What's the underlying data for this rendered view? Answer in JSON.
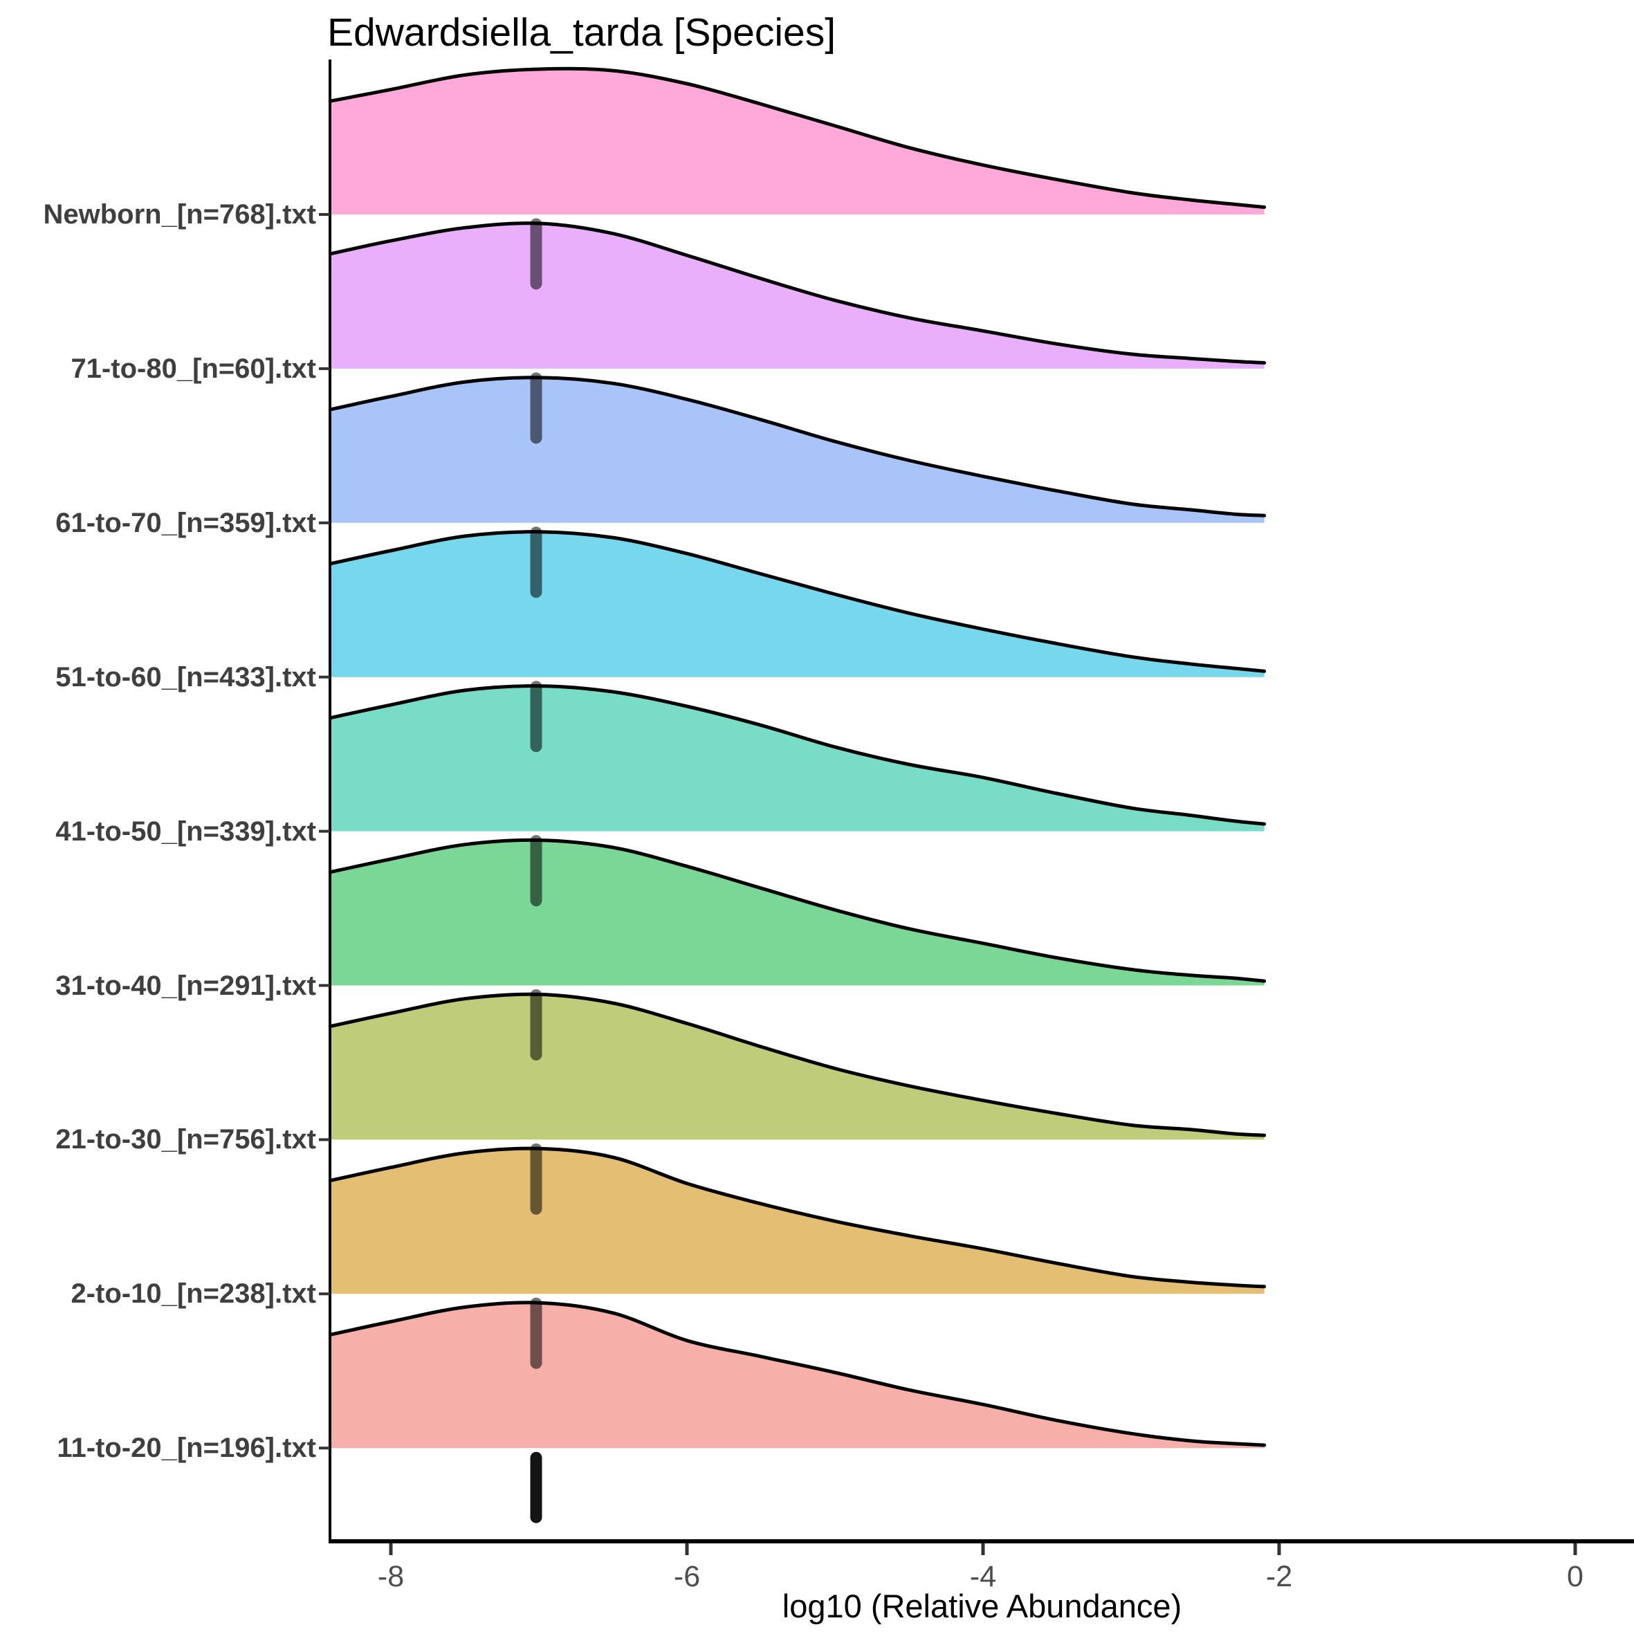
{
  "title": "Edwardsiella_tarda [Species]",
  "chart_data": {
    "type": "area",
    "subtype": "ridgeline-density",
    "title": "Edwardsiella_tarda [Species]",
    "xlabel": "log10 (Relative Abundance)",
    "ylabel": "",
    "legend": "none",
    "grid": false,
    "xlim": [
      -8.41,
      0.38
    ],
    "x_tick_values": [
      -8,
      -6,
      -4,
      -2,
      0
    ],
    "x_tick_labels": [
      "-8",
      "-6",
      "-4",
      "-2",
      "0"
    ],
    "density_truncated_at_x": -2.1,
    "rug_segment_x": -7.0,
    "density_x": [
      -8.41,
      -8.0,
      -7.5,
      -7.0,
      -6.5,
      -6.0,
      -5.5,
      -5.0,
      -4.5,
      -4.0,
      -3.5,
      -3.0,
      -2.6,
      -2.3,
      -2.1
    ],
    "series": [
      {
        "label": "Newborn_[n=768].txt",
        "n": 768,
        "fill": "#FFA9DA",
        "median_x": -7.0,
        "density": [
          0.78,
          0.86,
          0.96,
          1.0,
          0.99,
          0.9,
          0.76,
          0.61,
          0.46,
          0.34,
          0.24,
          0.15,
          0.1,
          0.07,
          0.05
        ]
      },
      {
        "label": "71-to-80_[n=60].txt",
        "n": 60,
        "fill": "#E9AFFB",
        "median_x": -7.0,
        "density": [
          0.79,
          0.88,
          0.97,
          1.0,
          0.93,
          0.78,
          0.62,
          0.47,
          0.35,
          0.26,
          0.17,
          0.1,
          0.07,
          0.05,
          0.04
        ]
      },
      {
        "label": "61-to-70_[n=359].txt",
        "n": 359,
        "fill": "#A8C4F8",
        "median_x": -7.0,
        "density": [
          0.78,
          0.87,
          0.97,
          1.0,
          0.96,
          0.85,
          0.71,
          0.56,
          0.43,
          0.32,
          0.22,
          0.13,
          0.09,
          0.06,
          0.05
        ]
      },
      {
        "label": "51-to-60_[n=433].txt",
        "n": 433,
        "fill": "#77D7EC",
        "median_x": -7.0,
        "density": [
          0.78,
          0.87,
          0.97,
          1.0,
          0.96,
          0.85,
          0.71,
          0.57,
          0.44,
          0.33,
          0.23,
          0.14,
          0.09,
          0.06,
          0.04
        ]
      },
      {
        "label": "41-to-50_[n=339].txt",
        "n": 339,
        "fill": "#79DCC6",
        "median_x": -7.0,
        "density": [
          0.78,
          0.87,
          0.97,
          1.0,
          0.96,
          0.86,
          0.73,
          0.58,
          0.46,
          0.37,
          0.26,
          0.16,
          0.11,
          0.07,
          0.05
        ]
      },
      {
        "label": "31-to-40_[n=291].txt",
        "n": 291,
        "fill": "#7BD795",
        "median_x": -7.0,
        "density": [
          0.78,
          0.87,
          0.97,
          1.0,
          0.95,
          0.82,
          0.67,
          0.52,
          0.39,
          0.29,
          0.19,
          0.11,
          0.07,
          0.05,
          0.03
        ]
      },
      {
        "label": "21-to-30_[n=756].txt",
        "n": 756,
        "fill": "#BFCC79",
        "median_x": -7.0,
        "density": [
          0.78,
          0.87,
          0.97,
          1.0,
          0.94,
          0.8,
          0.64,
          0.49,
          0.37,
          0.27,
          0.18,
          0.1,
          0.07,
          0.04,
          0.03
        ]
      },
      {
        "label": "2-to-10_[n=238].txt",
        "n": 238,
        "fill": "#E3BE73",
        "median_x": -7.0,
        "density": [
          0.78,
          0.87,
          0.97,
          1.0,
          0.94,
          0.76,
          0.62,
          0.5,
          0.4,
          0.31,
          0.21,
          0.12,
          0.08,
          0.06,
          0.05
        ]
      },
      {
        "label": "11-to-20_[n=196].txt",
        "n": 196,
        "fill": "#F6B0A9",
        "median_x": -7.0,
        "density": [
          0.78,
          0.87,
          0.97,
          1.0,
          0.93,
          0.74,
          0.63,
          0.52,
          0.4,
          0.3,
          0.19,
          0.1,
          0.05,
          0.03,
          0.02
        ]
      }
    ]
  },
  "style_colors": {
    "outline": "#000000",
    "axis_line": "#000000",
    "tick_mark": "#333333",
    "tick_label": "#4d4d4d",
    "category_label": "#3f3f3f",
    "rug_overlay": "rgba(0,0,0,0.55)",
    "rug_on_white": "rgba(0,0,0,0.92)"
  }
}
